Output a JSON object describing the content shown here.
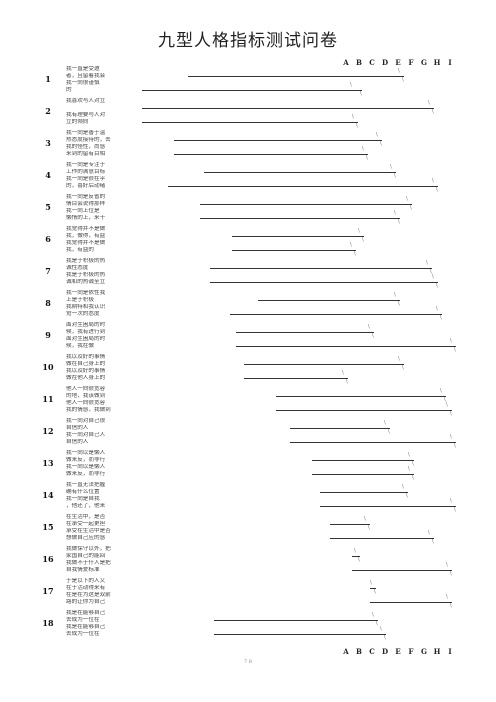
{
  "title": "九型人格指标测试问卷",
  "column_letters": [
    "A",
    "B",
    "C",
    "D",
    "E",
    "F",
    "G",
    "H",
    "I"
  ],
  "tick_mark": "\\",
  "page_number": "7 8",
  "questions": [
    {
      "number": "1",
      "statements": [
        "我一直是受邀",
        "者，且留着我会",
        "我一向很谨慎",
        "的"
      ]
    },
    {
      "number": "2",
      "statements": [
        "我喜欢与人对立",
        "",
        "我有理要与人对",
        "立的倾向"
      ]
    },
    {
      "number": "3",
      "statements": [
        "我一向是善于温",
        "热态度接待的，去",
        "我的怪性，尚感",
        "来到的留有目相"
      ]
    },
    {
      "number": "4",
      "statements": [
        "我一向是专注于",
        "工作的满意目标",
        "我一向是很在乎",
        "的，喜好后动绪"
      ]
    },
    {
      "number": "5",
      "statements": [
        "我一向是反省的",
        "情目会说得那样",
        "我一向上位是",
        "懒惰的上，来十"
      ]
    },
    {
      "number": "6",
      "statements": [
        "我觉得并不是做",
        "我，做得，有益",
        "我觉得并不是做",
        "我，有益的"
      ]
    },
    {
      "number": "7",
      "statements": [
        "我是于积极的热",
        "诚性态度",
        "我是于积极的热",
        "诚和的热诚至立"
      ]
    },
    {
      "number": "8",
      "statements": [
        "我一向是依性我",
        "上是于积极",
        "我期特和我认识",
        "觉一次的态度"
      ]
    },
    {
      "number": "9",
      "statements": [
        "面对生困局的时",
        "候，我有进行到",
        "面对生困局的时",
        "候，我在做"
      ]
    },
    {
      "number": "10",
      "statements": [
        "我以及好的事情",
        "做在自己身上的",
        "我以及好的事情",
        "做在他人身上的"
      ]
    },
    {
      "number": "11",
      "statements": [
        "他人一向很宽容",
        "的地，我该做到",
        "他人一向很宽容",
        "我的情感，我做到"
      ]
    },
    {
      "number": "12",
      "statements": [
        "我一向对自己很",
        "自信的人",
        "我一向对自己人",
        "自信的人"
      ]
    },
    {
      "number": "13",
      "statements": [
        "我一向以是懒人",
        "做来反，而非行",
        "我一向以是懒人",
        "做来反，而非行"
      ]
    },
    {
      "number": "14",
      "statements": [
        "我一直无法把握",
        "确有什么位置",
        "我一向是自我",
        "，他还了，他来"
      ]
    },
    {
      "number": "15",
      "statements": [
        "在生活中，是否",
        "在承受一起更担",
        "承受在生活中是否",
        "想做自己应的感"
      ]
    },
    {
      "number": "16",
      "statements": [
        "我做保守以外，把",
        "家国自己的能回",
        "我做不于什人是把",
        "自我情爱标准"
      ]
    },
    {
      "number": "17",
      "statements": [
        "于是以下的人又",
        "在于活动得来有",
        "在是在为这是双前",
        "路的让你为自己"
      ]
    },
    {
      "number": "18",
      "statements": [
        "我是在能够自己",
        "去成为一位在",
        "我是在能够自己",
        "去成为一位在"
      ]
    }
  ]
}
